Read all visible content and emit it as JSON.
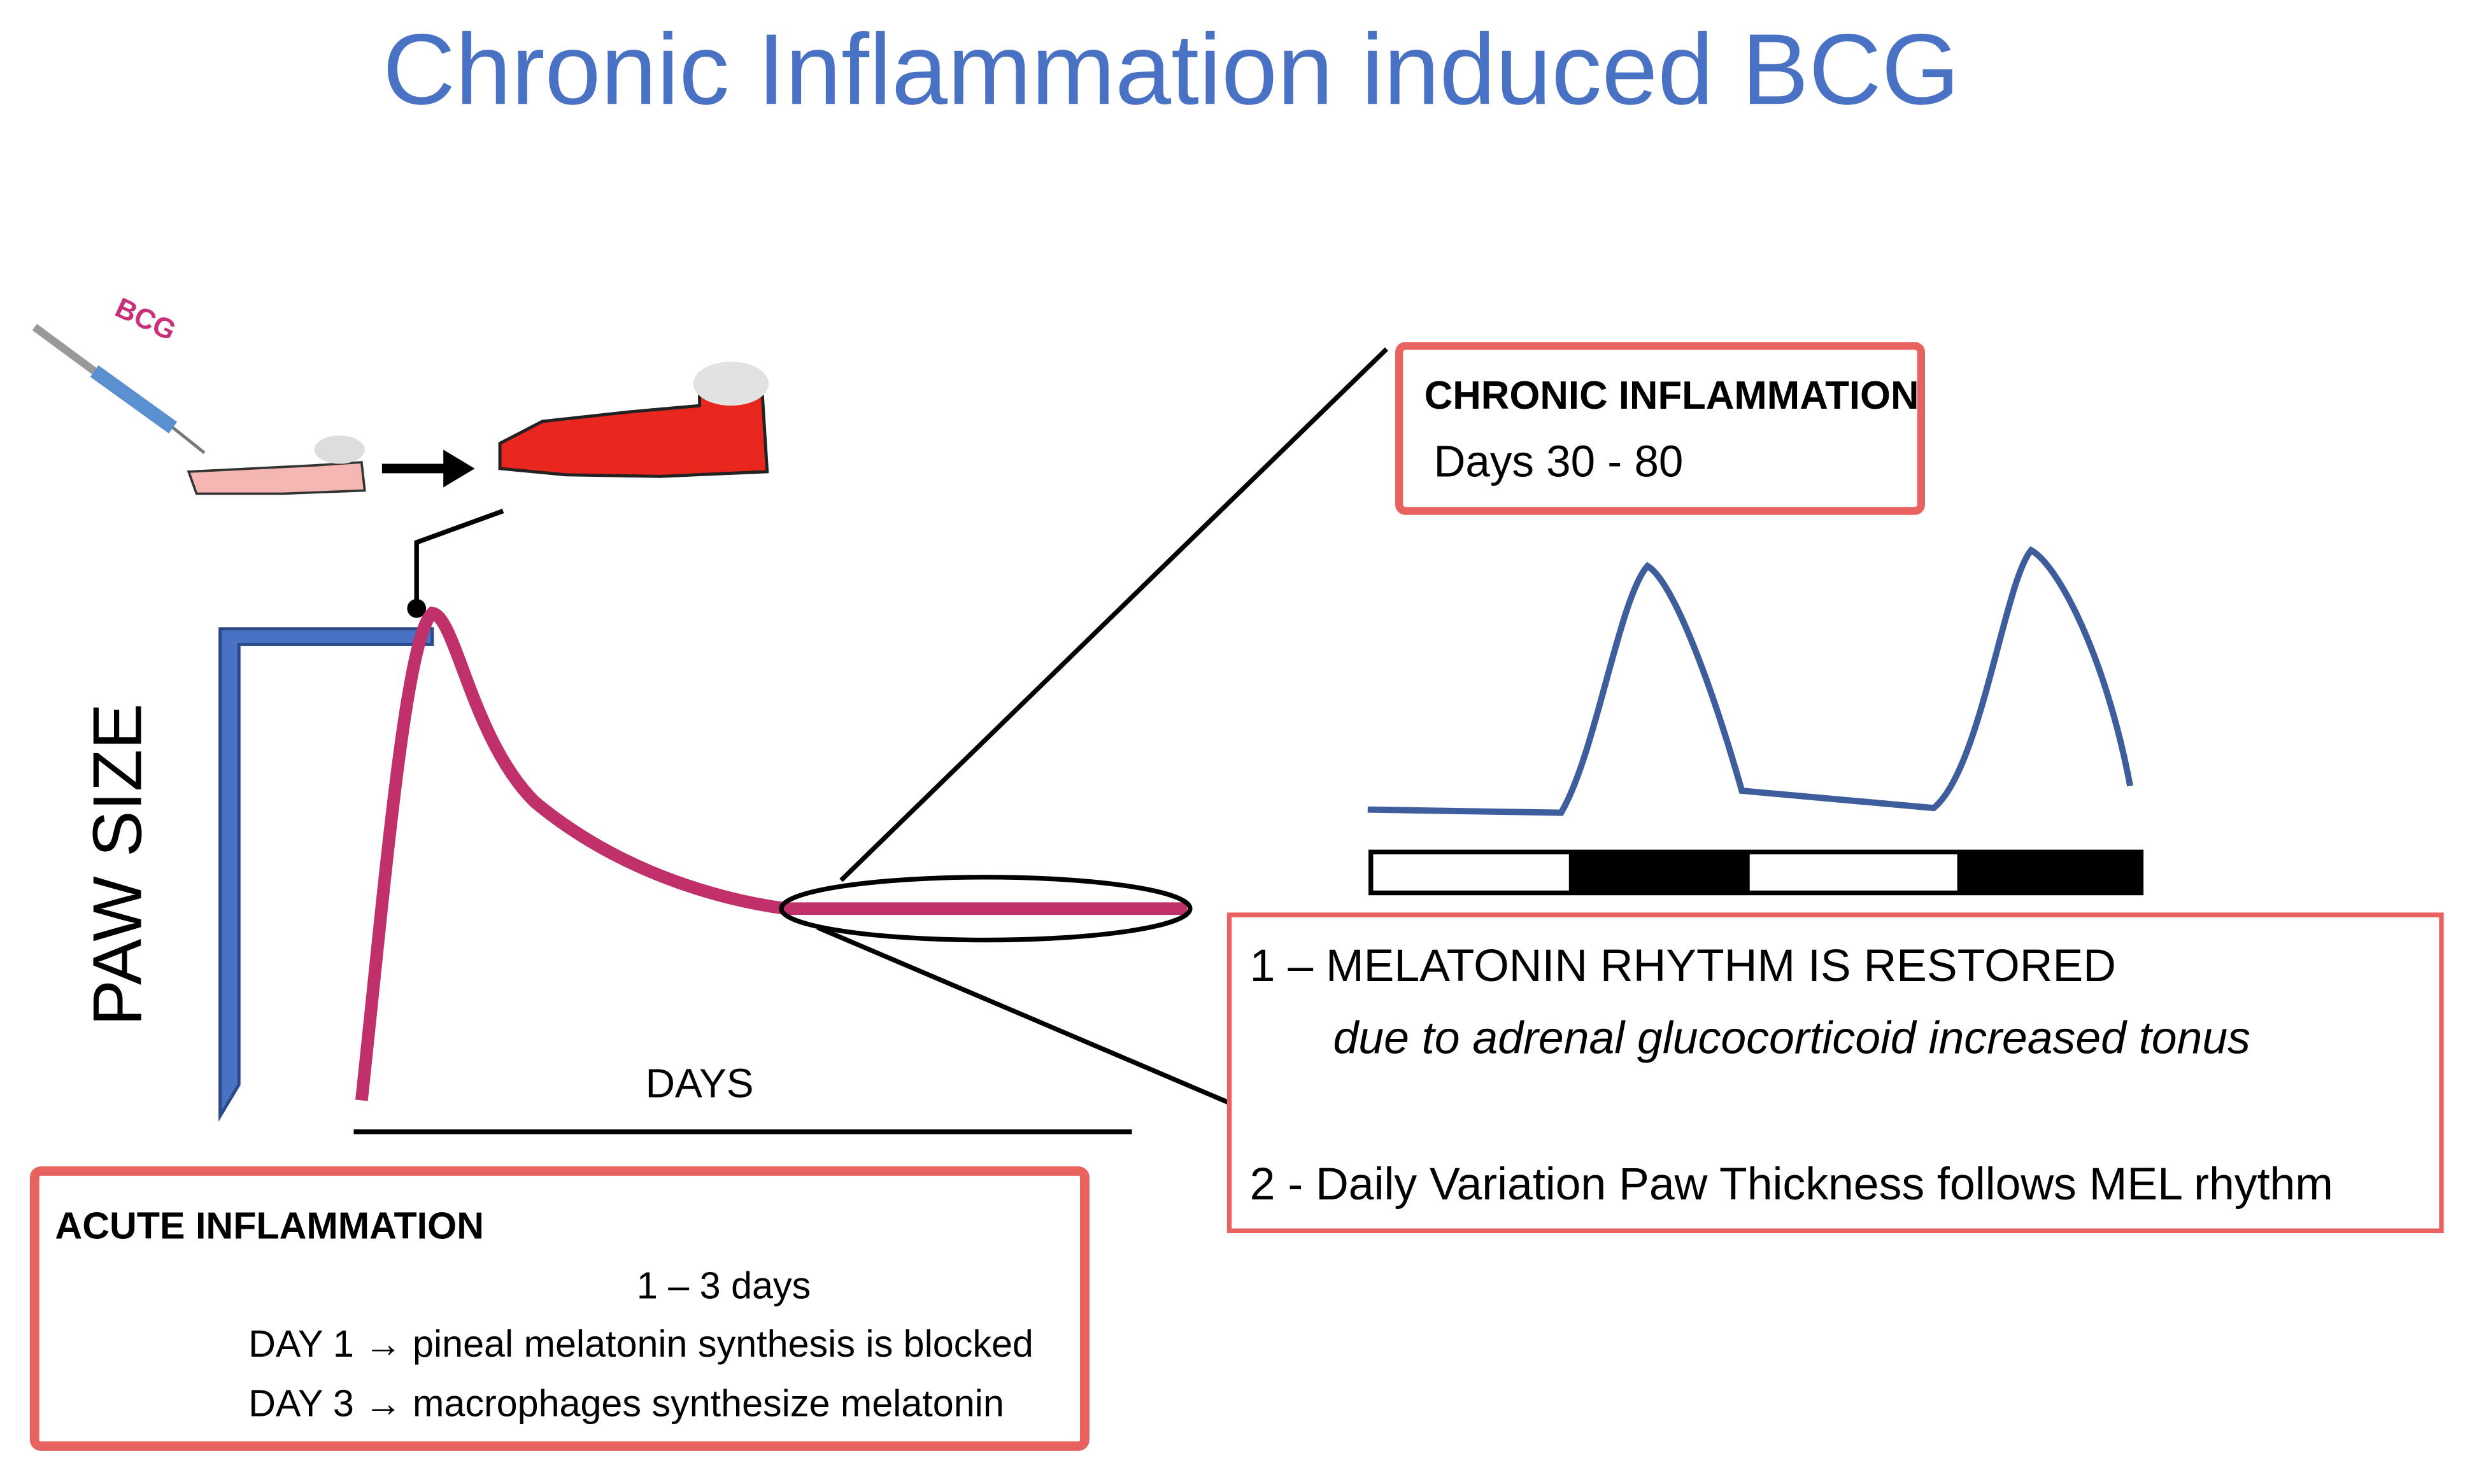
{
  "title": "Chronic Inflammation induced BCG",
  "injection": {
    "label": "BCG"
  },
  "axes": {
    "y_label": "PAW SIZE",
    "x_label": "DAYS"
  },
  "chronic_box": {
    "heading": "CHRONIC INFLAMMATION",
    "period": "Days 30 - 80"
  },
  "findings_box": {
    "item1": "1 – MELATONIN RHYTHM IS RESTORED",
    "item1_note": "due to adrenal glucocorticoid increased tonus",
    "item2": "2 - Daily Variation Paw Thickness follows MEL rhythm"
  },
  "acute_box": {
    "heading": "ACUTE INFLAMMATION",
    "period": "1 – 3 days",
    "day1": "DAY 1 → pineal melatonin synthesis is blocked",
    "day3": "DAY 3 → macrophages synthesize melatonin"
  }
}
